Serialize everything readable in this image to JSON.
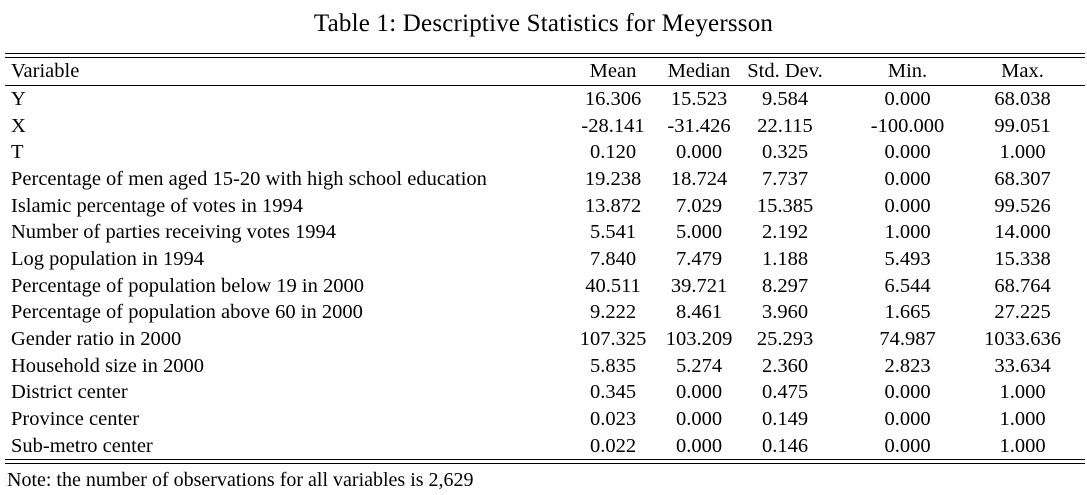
{
  "title": "Table 1: Descriptive Statistics for Meyersson",
  "table": {
    "columns": [
      "Variable",
      "Mean",
      "Median",
      "Std. Dev.",
      "Min.",
      "Max."
    ],
    "rows": [
      [
        "Y",
        "16.306",
        "15.523",
        "9.584",
        "0.000",
        "68.038"
      ],
      [
        "X",
        "-28.141",
        "-31.426",
        "22.115",
        "-100.000",
        "99.051"
      ],
      [
        "T",
        "0.120",
        "0.000",
        "0.325",
        "0.000",
        "1.000"
      ],
      [
        "Percentage of men aged 15-20 with high school education",
        "19.238",
        "18.724",
        "7.737",
        "0.000",
        "68.307"
      ],
      [
        "Islamic percentage of votes in 1994",
        "13.872",
        "7.029",
        "15.385",
        "0.000",
        "99.526"
      ],
      [
        "Number of parties receiving votes 1994",
        "5.541",
        "5.000",
        "2.192",
        "1.000",
        "14.000"
      ],
      [
        "Log population in 1994",
        "7.840",
        "7.479",
        "1.188",
        "5.493",
        "15.338"
      ],
      [
        "Percentage of population below 19 in 2000",
        "40.511",
        "39.721",
        "8.297",
        "6.544",
        "68.764"
      ],
      [
        "Percentage of population above 60 in 2000",
        "9.222",
        "8.461",
        "3.960",
        "1.665",
        "27.225"
      ],
      [
        "Gender ratio in 2000",
        "107.325",
        "103.209",
        "25.293",
        "74.987",
        "1033.636"
      ],
      [
        "Household size in 2000",
        "5.835",
        "5.274",
        "2.360",
        "2.823",
        "33.634"
      ],
      [
        "District center",
        "0.345",
        "0.000",
        "0.475",
        "0.000",
        "1.000"
      ],
      [
        "Province center",
        "0.023",
        "0.000",
        "0.149",
        "0.000",
        "1.000"
      ],
      [
        "Sub-metro center",
        "0.022",
        "0.000",
        "0.146",
        "0.000",
        "1.000"
      ]
    ],
    "note": "Note: the number of observations for all variables is 2,629"
  },
  "colors": {
    "text": "#000000",
    "background": "#ffffff",
    "rule": "#000000"
  }
}
